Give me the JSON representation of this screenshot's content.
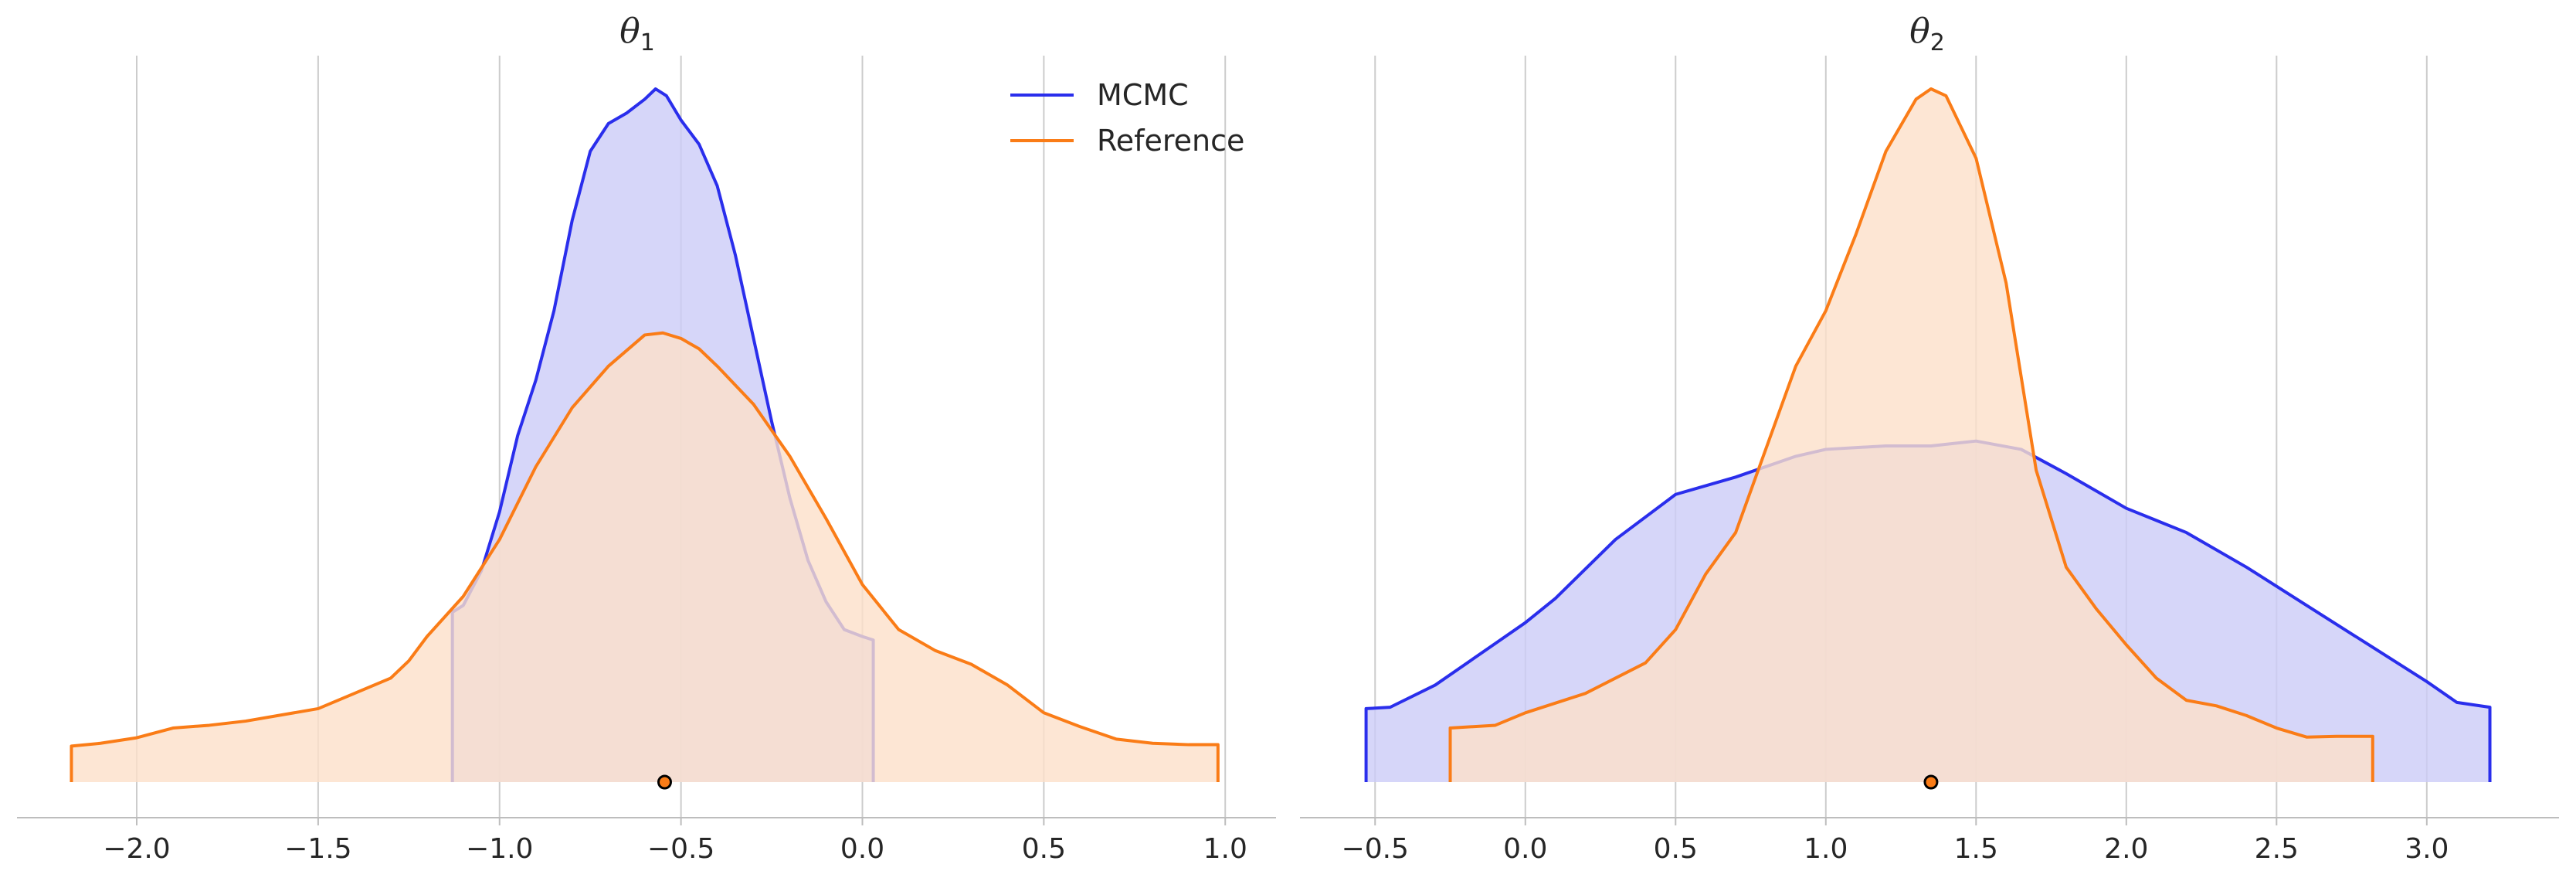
{
  "chart_data": [
    {
      "type": "area",
      "title": "θ",
      "title_subscript": "1",
      "xlabel": "",
      "ylabel": "",
      "xlim": [
        -2.33,
        1.14
      ],
      "ylim": [
        0,
        1.0
      ],
      "grid": "vertical",
      "x_ticks": [
        -2.0,
        -1.5,
        -1.0,
        -0.5,
        0.0,
        0.5,
        1.0
      ],
      "x_tick_labels": [
        "−2.0",
        "−1.5",
        "−1.0",
        "−0.5",
        "0.0",
        "0.5",
        "1.0"
      ],
      "legend": {
        "placement": "top-right"
      },
      "series": [
        {
          "name": "MCMC",
          "color": "#2a2eec",
          "fill": "#ccccf8",
          "x": [
            -1.13,
            -1.1,
            -1.05,
            -1.0,
            -0.95,
            -0.9,
            -0.85,
            -0.8,
            -0.75,
            -0.7,
            -0.65,
            -0.6,
            -0.57,
            -0.54,
            -0.5,
            -0.45,
            -0.4,
            -0.35,
            -0.3,
            -0.25,
            -0.2,
            -0.15,
            -0.1,
            -0.05,
            0.0,
            0.03
          ],
          "y": [
            0.245,
            0.255,
            0.305,
            0.39,
            0.5,
            0.58,
            0.68,
            0.81,
            0.91,
            0.95,
            0.965,
            0.985,
            1.0,
            0.99,
            0.955,
            0.92,
            0.86,
            0.76,
            0.64,
            0.52,
            0.41,
            0.32,
            0.26,
            0.22,
            0.21,
            0.205
          ]
        },
        {
          "name": "Reference",
          "color": "#fa7c17",
          "fill": "#fde0c9",
          "x": [
            -2.18,
            -2.1,
            -2.0,
            -1.9,
            -1.8,
            -1.7,
            -1.6,
            -1.5,
            -1.4,
            -1.3,
            -1.25,
            -1.2,
            -1.1,
            -1.0,
            -0.9,
            -0.8,
            -0.7,
            -0.6,
            -0.55,
            -0.5,
            -0.45,
            -0.4,
            -0.3,
            -0.2,
            -0.1,
            0.0,
            0.1,
            0.2,
            0.3,
            0.4,
            0.5,
            0.6,
            0.7,
            0.8,
            0.9,
            0.98
          ],
          "y": [
            0.052,
            0.056,
            0.064,
            0.078,
            0.082,
            0.088,
            0.097,
            0.106,
            0.128,
            0.15,
            0.175,
            0.21,
            0.268,
            0.35,
            0.455,
            0.54,
            0.6,
            0.645,
            0.648,
            0.64,
            0.625,
            0.6,
            0.545,
            0.47,
            0.38,
            0.285,
            0.22,
            0.19,
            0.17,
            0.14,
            0.1,
            0.08,
            0.062,
            0.056,
            0.054,
            0.054
          ]
        }
      ],
      "markers": [
        {
          "x": -0.545,
          "y": 0.0
        }
      ]
    },
    {
      "type": "area",
      "title": "θ",
      "title_subscript": "2",
      "xlabel": "",
      "ylabel": "",
      "xlim": [
        -0.75,
        3.44
      ],
      "ylim": [
        0,
        1.0
      ],
      "grid": "vertical",
      "x_ticks": [
        -0.5,
        0.0,
        0.5,
        1.0,
        1.5,
        2.0,
        2.5,
        3.0
      ],
      "x_tick_labels": [
        "−0.5",
        "0.0",
        "0.5",
        "1.0",
        "1.5",
        "2.0",
        "2.5",
        "3.0"
      ],
      "series": [
        {
          "name": "MCMC",
          "color": "#2a2eec",
          "fill": "#ccccf8",
          "x": [
            -0.53,
            -0.45,
            -0.3,
            -0.1,
            0.0,
            0.1,
            0.3,
            0.5,
            0.7,
            0.9,
            1.0,
            1.2,
            1.35,
            1.5,
            1.65,
            1.8,
            2.0,
            2.2,
            2.4,
            2.6,
            2.8,
            3.0,
            3.1,
            3.21
          ],
          "y": [
            0.106,
            0.108,
            0.14,
            0.2,
            0.23,
            0.265,
            0.35,
            0.415,
            0.44,
            0.47,
            0.48,
            0.485,
            0.485,
            0.492,
            0.48,
            0.445,
            0.395,
            0.36,
            0.31,
            0.255,
            0.2,
            0.145,
            0.115,
            0.108
          ]
        },
        {
          "name": "Reference",
          "color": "#fa7c17",
          "fill": "#fde0c9",
          "x": [
            -0.25,
            -0.1,
            0.0,
            0.2,
            0.4,
            0.5,
            0.6,
            0.7,
            0.8,
            0.9,
            1.0,
            1.1,
            1.2,
            1.3,
            1.35,
            1.4,
            1.5,
            1.6,
            1.7,
            1.8,
            1.9,
            2.0,
            2.1,
            2.2,
            2.3,
            2.4,
            2.5,
            2.6,
            2.7,
            2.82
          ],
          "y": [
            0.078,
            0.082,
            0.1,
            0.128,
            0.172,
            0.22,
            0.3,
            0.36,
            0.48,
            0.6,
            0.68,
            0.79,
            0.91,
            0.985,
            1.0,
            0.99,
            0.9,
            0.72,
            0.45,
            0.31,
            0.25,
            0.198,
            0.15,
            0.118,
            0.11,
            0.096,
            0.078,
            0.065,
            0.066,
            0.066
          ]
        }
      ],
      "markers": [
        {
          "x": 1.35,
          "y": 0.0
        }
      ]
    }
  ]
}
